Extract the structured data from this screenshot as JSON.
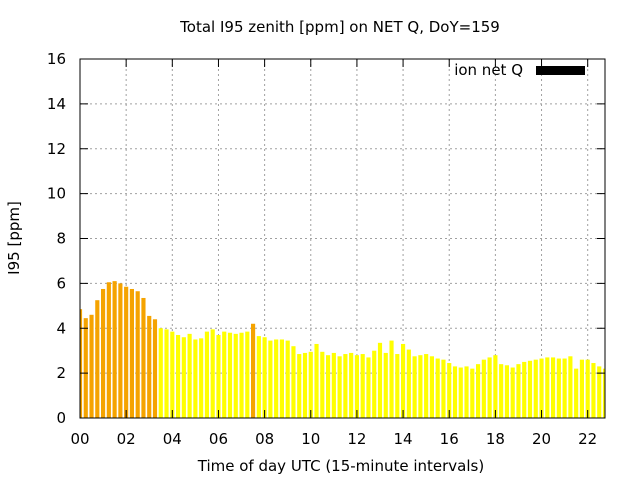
{
  "chart_data": {
    "type": "bar",
    "title": "Total I95 zenith [ppm] on NET Q, DoY=159",
    "xlabel": "Time of day UTC (15-minute intervals)",
    "ylabel": "I95 [ppm]",
    "legend": {
      "label": "ion net Q",
      "placement": "top-right",
      "color": "#000000"
    },
    "grid": true,
    "xlim": [
      0,
      22.75
    ],
    "ylim": [
      0,
      16
    ],
    "xticks": [
      "00",
      "02",
      "04",
      "06",
      "08",
      "10",
      "12",
      "14",
      "16",
      "18",
      "20",
      "22"
    ],
    "yticks": [
      "0",
      "2",
      "4",
      "6",
      "8",
      "10",
      "12",
      "14",
      "16"
    ],
    "bar_interval_hours": 0.25,
    "colors": {
      "orange": "#f5a300",
      "yellow": "#ffff00",
      "axis": "#000000",
      "grid": "#a0a0a0"
    },
    "values": [
      4.85,
      4.45,
      4.6,
      5.25,
      5.75,
      6.05,
      6.1,
      6.0,
      5.85,
      5.75,
      5.65,
      5.35,
      4.55,
      4.4,
      4.0,
      3.95,
      3.85,
      3.7,
      3.6,
      3.75,
      3.5,
      3.55,
      3.85,
      3.95,
      3.7,
      3.85,
      3.8,
      3.75,
      3.8,
      3.85,
      4.2,
      3.65,
      3.6,
      3.45,
      3.5,
      3.5,
      3.45,
      3.2,
      2.85,
      2.9,
      2.95,
      3.3,
      2.95,
      2.8,
      2.9,
      2.75,
      2.85,
      2.9,
      2.8,
      2.85,
      2.7,
      3.0,
      3.35,
      2.9,
      3.45,
      2.85,
      3.3,
      3.05,
      2.75,
      2.8,
      2.85,
      2.75,
      2.65,
      2.6,
      2.45,
      2.3,
      2.25,
      2.3,
      2.2,
      2.4,
      2.6,
      2.7,
      2.8,
      2.4,
      2.35,
      2.25,
      2.4,
      2.5,
      2.55,
      2.6,
      2.65,
      2.7,
      2.7,
      2.65,
      2.65,
      2.75,
      2.2,
      2.6,
      2.6,
      2.45,
      2.3,
      2.2,
      2.45
    ],
    "bar_colors": [
      "orange",
      "orange",
      "orange",
      "orange",
      "orange",
      "orange",
      "orange",
      "orange",
      "orange",
      "orange",
      "orange",
      "orange",
      "orange",
      "orange",
      "yellow",
      "yellow",
      "yellow",
      "yellow",
      "yellow",
      "yellow",
      "yellow",
      "yellow",
      "yellow",
      "yellow",
      "yellow",
      "yellow",
      "yellow",
      "yellow",
      "yellow",
      "yellow",
      "orange",
      "yellow",
      "yellow",
      "yellow",
      "yellow",
      "yellow",
      "yellow",
      "yellow",
      "yellow",
      "yellow",
      "yellow",
      "yellow",
      "yellow",
      "yellow",
      "yellow",
      "yellow",
      "yellow",
      "yellow",
      "yellow",
      "yellow",
      "yellow",
      "yellow",
      "yellow",
      "yellow",
      "yellow",
      "yellow",
      "yellow",
      "yellow",
      "yellow",
      "yellow",
      "yellow",
      "yellow",
      "yellow",
      "yellow",
      "yellow",
      "yellow",
      "yellow",
      "yellow",
      "yellow",
      "yellow",
      "yellow",
      "yellow",
      "yellow",
      "yellow",
      "yellow",
      "yellow",
      "yellow",
      "yellow",
      "yellow",
      "yellow",
      "yellow",
      "yellow",
      "yellow",
      "yellow",
      "yellow",
      "yellow",
      "yellow",
      "yellow",
      "yellow",
      "yellow",
      "yellow",
      "yellow",
      "yellow"
    ]
  }
}
